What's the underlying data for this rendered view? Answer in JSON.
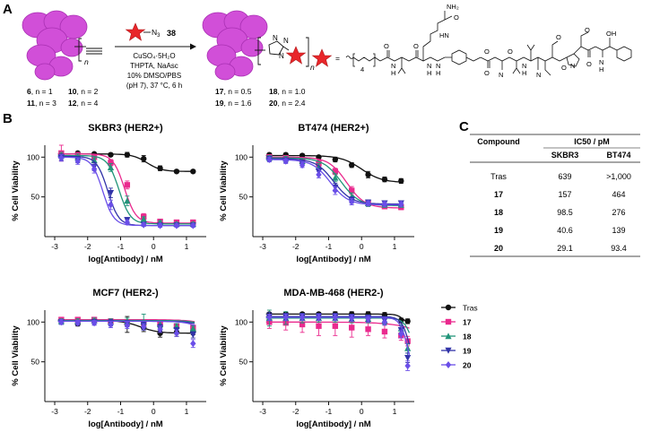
{
  "panel_labels": {
    "a": "A",
    "b": "B",
    "c": "C"
  },
  "scheme": {
    "reagent_number": "38",
    "reagent_azide": "N",
    "azide_sub": "3",
    "conditions": [
      "CuSO₄·5H₂O",
      "THPTA, NaAsc",
      "10% DMSO/PBS",
      "(pH 7), 37 °C, 6 h"
    ],
    "subscript_n": "n",
    "sm_labels": [
      {
        "id": "6",
        "rest": ", n = 1"
      },
      {
        "id": "10",
        "rest": ", n = 2"
      },
      {
        "id": "11",
        "rest": ", n = 3"
      },
      {
        "id": "12",
        "rest": ", n = 4"
      }
    ],
    "prod_labels": [
      {
        "id": "17",
        "rest": ", n = 0.5"
      },
      {
        "id": "18",
        "rest": ", n = 1.0"
      },
      {
        "id": "19",
        "rest": ", n = 1.6"
      },
      {
        "id": "20",
        "rest": ", n = 2.4"
      }
    ],
    "equals": "=",
    "payload_subscript": "4",
    "payload_atoms": {
      "NH2": "NH₂",
      "NH": "NH",
      "HN": "HN",
      "H": "H",
      "O": "O",
      "N": "N",
      "OH": "OH"
    }
  },
  "table": {
    "header_compound": "Compound",
    "header_ic50": "IC50 / pM",
    "sub_headers": [
      "SKBR3",
      "BT474"
    ],
    "rows": [
      {
        "compound": "Tras",
        "skbr3": "639",
        "bt474": ">1,000"
      },
      {
        "compound": "17",
        "skbr3": "157",
        "bt474": "464"
      },
      {
        "compound": "18",
        "skbr3": "98.5",
        "bt474": "276"
      },
      {
        "compound": "19",
        "skbr3": "40.6",
        "bt474": "139"
      },
      {
        "compound": "20",
        "skbr3": "29.1",
        "bt474": "93.4"
      }
    ]
  },
  "legend": {
    "entries": [
      {
        "name": "Tras",
        "color": "#111111",
        "marker": "circle"
      },
      {
        "name": "17",
        "color": "#ea2a8e",
        "marker": "square"
      },
      {
        "name": "18",
        "color": "#22957a",
        "marker": "triangle-up"
      },
      {
        "name": "19",
        "color": "#3133a8",
        "marker": "triangle-down"
      },
      {
        "name": "20",
        "color": "#6a4ee8",
        "marker": "diamond"
      }
    ]
  },
  "chart_data": [
    {
      "type": "scatter",
      "title": "SKBR3 (HER2+)",
      "xlabel": "log[Antibody] / nM",
      "ylabel": "% Cell Viability",
      "xlim": [
        -3.3,
        1.6
      ],
      "ylim": [
        0,
        115
      ],
      "xticks": [
        -3,
        -2,
        -1,
        0,
        1
      ],
      "yticks": [
        50,
        100
      ],
      "x": [
        -2.8,
        -2.3,
        -1.8,
        -1.3,
        -0.8,
        -0.3,
        0.2,
        0.7,
        1.2
      ],
      "series": [
        {
          "name": "Tras",
          "values": [
            104,
            105,
            104,
            103,
            103,
            98,
            86,
            82,
            82
          ],
          "errors": [
            2,
            2,
            2,
            2,
            3,
            4,
            3,
            2,
            2
          ],
          "curve": [
            104,
            82,
            -0.2,
            2.0
          ]
        },
        {
          "name": "17",
          "values": [
            105,
            102,
            100,
            93,
            65,
            25,
            19,
            18,
            18
          ],
          "errors": [
            10,
            4,
            3,
            4,
            5,
            4,
            3,
            2,
            2
          ],
          "curve": [
            104,
            17,
            -0.88,
            2.5
          ]
        },
        {
          "name": "18",
          "values": [
            102,
            100,
            96,
            87,
            45,
            22,
            18,
            16,
            16
          ],
          "errors": [
            4,
            4,
            3,
            5,
            6,
            3,
            2,
            2,
            2
          ],
          "curve": [
            102,
            16,
            -1.05,
            2.5
          ]
        },
        {
          "name": "19",
          "values": [
            100,
            97,
            88,
            55,
            21,
            15,
            14,
            14,
            14
          ],
          "errors": [
            4,
            4,
            5,
            6,
            3,
            2,
            2,
            2,
            2
          ],
          "curve": [
            101,
            14,
            -1.39,
            2.6
          ]
        },
        {
          "name": "20",
          "values": [
            99,
            95,
            85,
            40,
            18,
            15,
            14,
            14,
            14
          ],
          "errors": [
            4,
            4,
            5,
            6,
            3,
            2,
            2,
            2,
            2
          ],
          "curve": [
            100,
            14,
            -1.54,
            2.6
          ]
        }
      ]
    },
    {
      "type": "scatter",
      "title": "BT474 (HER2+)",
      "xlabel": "log[Antibody] / nM",
      "ylabel": "% Cell Viability",
      "xlim": [
        -3.3,
        1.6
      ],
      "ylim": [
        0,
        115
      ],
      "xticks": [
        -3,
        -2,
        -1,
        0,
        1
      ],
      "yticks": [
        50,
        100
      ],
      "x": [
        -2.8,
        -2.3,
        -1.8,
        -1.3,
        -0.8,
        -0.3,
        0.2,
        0.7,
        1.2
      ],
      "series": [
        {
          "name": "Tras",
          "values": [
            103,
            103,
            102,
            100,
            97,
            90,
            78,
            72,
            70
          ],
          "errors": [
            2,
            2,
            2,
            2,
            3,
            3,
            4,
            3,
            3
          ],
          "curve": [
            102,
            68,
            0.0,
            1.4
          ]
        },
        {
          "name": "17",
          "values": [
            100,
            99,
            96,
            92,
            82,
            58,
            42,
            38,
            37
          ],
          "errors": [
            3,
            3,
            3,
            4,
            4,
            5,
            4,
            3,
            3
          ],
          "curve": [
            100,
            36,
            -0.45,
            1.6
          ]
        },
        {
          "name": "18",
          "values": [
            99,
            98,
            95,
            88,
            74,
            50,
            42,
            40,
            40
          ],
          "errors": [
            3,
            3,
            3,
            4,
            5,
            5,
            4,
            3,
            3
          ],
          "curve": [
            99,
            39,
            -0.62,
            1.6
          ]
        },
        {
          "name": "19",
          "values": [
            98,
            96,
            92,
            82,
            62,
            46,
            43,
            42,
            42
          ],
          "errors": [
            3,
            3,
            3,
            4,
            5,
            4,
            3,
            3,
            3
          ],
          "curve": [
            98,
            41,
            -0.85,
            1.6
          ]
        },
        {
          "name": "20",
          "values": [
            97,
            95,
            90,
            78,
            58,
            44,
            42,
            41,
            41
          ],
          "errors": [
            3,
            3,
            3,
            4,
            5,
            4,
            3,
            3,
            3
          ],
          "curve": [
            97,
            40,
            -0.95,
            1.6
          ]
        }
      ]
    },
    {
      "type": "scatter",
      "title": "MCF7 (HER2-)",
      "xlabel": "log[Antibody] / nM",
      "ylabel": "% Cell Viability",
      "xlim": [
        -3.3,
        1.6
      ],
      "ylim": [
        0,
        115
      ],
      "xticks": [
        -3,
        -2,
        -1,
        0,
        1
      ],
      "yticks": [
        50,
        100
      ],
      "x": [
        -2.8,
        -2.3,
        -1.8,
        -1.3,
        -0.8,
        -0.3,
        0.2,
        0.7,
        1.2
      ],
      "series": [
        {
          "name": "Tras",
          "values": [
            102,
            98,
            102,
            101,
            97,
            93,
            86,
            87,
            88
          ],
          "errors": [
            2,
            3,
            3,
            3,
            10,
            5,
            5,
            5,
            4
          ],
          "curve": [
            102,
            86,
            -0.4,
            1.6
          ]
        },
        {
          "name": "17",
          "values": [
            103,
            103,
            103,
            101,
            100,
            99,
            97,
            95,
            93
          ],
          "errors": [
            2,
            2,
            3,
            3,
            3,
            3,
            3,
            3,
            3
          ],
          "curve": [
            103,
            40,
            2.4,
            1.2
          ]
        },
        {
          "name": "18",
          "values": [
            101,
            101,
            102,
            100,
            101,
            100,
            97,
            95,
            92
          ],
          "errors": [
            3,
            3,
            3,
            4,
            4,
            10,
            4,
            3,
            3
          ],
          "curve": [
            102,
            30,
            2.3,
            1.4
          ]
        },
        {
          "name": "19",
          "values": [
            100,
            99,
            100,
            99,
            98,
            96,
            93,
            90,
            84
          ],
          "errors": [
            3,
            3,
            3,
            4,
            4,
            4,
            4,
            3,
            4
          ],
          "curve": [
            101,
            20,
            2.2,
            1.5
          ]
        },
        {
          "name": "20",
          "values": [
            100,
            99,
            99,
            97,
            96,
            94,
            91,
            86,
            73
          ],
          "errors": [
            3,
            3,
            3,
            4,
            4,
            4,
            4,
            4,
            5
          ],
          "curve": [
            101,
            10,
            2.0,
            1.6
          ]
        }
      ]
    },
    {
      "type": "scatter",
      "title": "MDA-MB-468 (HER2-)",
      "xlabel": "log[Antibody] / nM",
      "ylabel": "% Cell Viability",
      "xlim": [
        -3.3,
        1.6
      ],
      "ylim": [
        0,
        115
      ],
      "xticks": [
        -3,
        -2,
        -1,
        0,
        1
      ],
      "yticks": [
        50,
        100
      ],
      "x": [
        -2.8,
        -2.3,
        -1.8,
        -1.3,
        -0.8,
        -0.3,
        0.2,
        0.7,
        1.2,
        1.4
      ],
      "series": [
        {
          "name": "Tras",
          "values": [
            110,
            110,
            110,
            110,
            110,
            110,
            110,
            109,
            102,
            101
          ],
          "errors": [
            2,
            2,
            2,
            2,
            3,
            3,
            3,
            3,
            3,
            3
          ],
          "curve": [
            110,
            95,
            1.3,
            4.0
          ]
        },
        {
          "name": "17",
          "values": [
            100,
            99,
            97,
            95,
            95,
            93,
            91,
            88,
            83,
            76
          ],
          "errors": [
            8,
            9,
            10,
            12,
            12,
            12,
            8,
            8,
            6,
            6
          ],
          "curve": [
            100,
            0,
            2.8,
            0.8
          ]
        },
        {
          "name": "18",
          "values": [
            105,
            105,
            105,
            105,
            105,
            104,
            104,
            102,
            92,
            67
          ],
          "errors": [
            10,
            8,
            6,
            5,
            5,
            5,
            5,
            5,
            5,
            6
          ],
          "curve": [
            105,
            30,
            1.6,
            3.2
          ]
        },
        {
          "name": "19",
          "values": [
            107,
            107,
            107,
            107,
            107,
            106,
            105,
            102,
            90,
            55
          ],
          "errors": [
            5,
            4,
            4,
            4,
            4,
            4,
            4,
            4,
            5,
            6
          ],
          "curve": [
            107,
            20,
            1.5,
            3.3
          ]
        },
        {
          "name": "20",
          "values": [
            106,
            106,
            106,
            106,
            106,
            105,
            104,
            100,
            85,
            45
          ],
          "errors": [
            4,
            4,
            4,
            4,
            4,
            4,
            4,
            4,
            5,
            6
          ],
          "curve": [
            106,
            10,
            1.45,
            3.4
          ]
        }
      ]
    }
  ]
}
